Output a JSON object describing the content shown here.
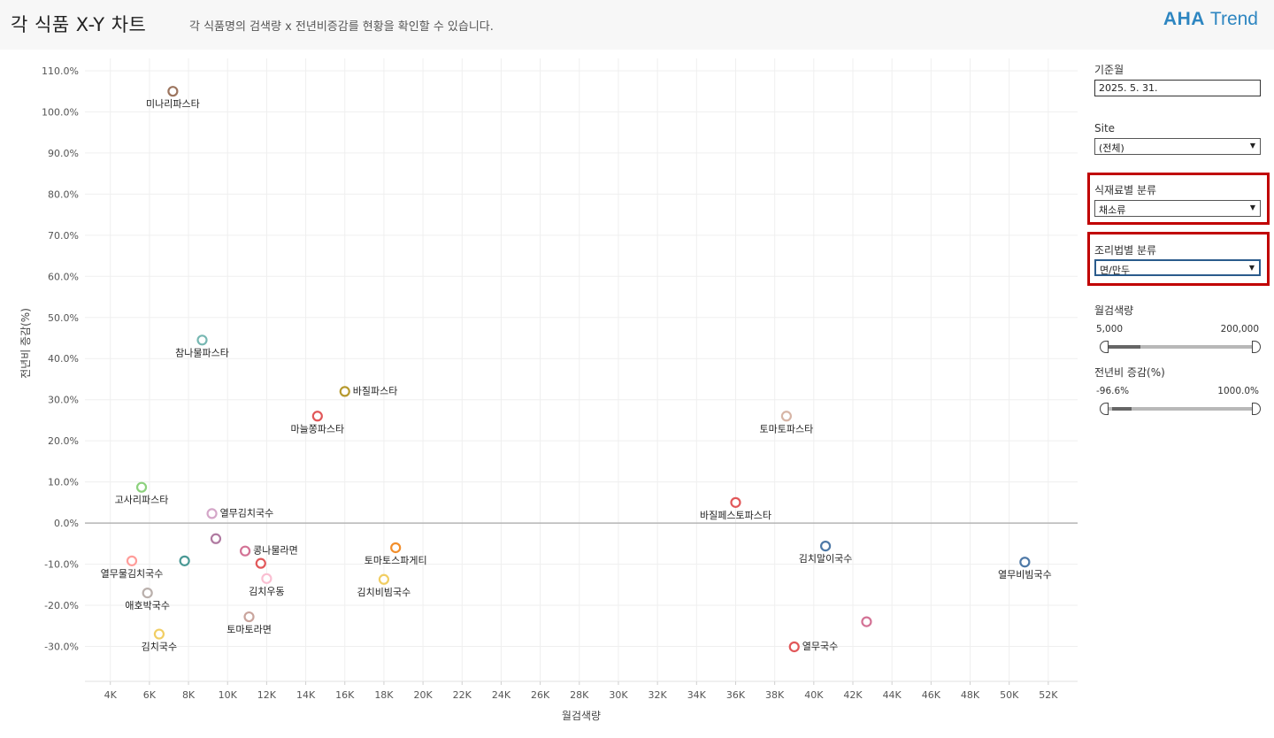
{
  "header": {
    "title": "각 식품 X-Y 차트",
    "subtitle": "각 식품명의 검색량 x 전년비증감를 현황을 확인할 수 있습니다.",
    "brand": {
      "strong": "AHA",
      "light": "Trend",
      "color": "#2e86c1"
    }
  },
  "filters": {
    "date": {
      "label": "기준월",
      "value": "2025. 5. 31."
    },
    "site": {
      "label": "Site",
      "value": "(전체)"
    },
    "ingredient": {
      "label": "식재료별 분류",
      "value": "채소류"
    },
    "cooking": {
      "label": "조리법별 분류",
      "value": "면/만두"
    },
    "search_volume": {
      "label": "월검색량",
      "min": "5,000",
      "max": "200,000"
    },
    "yoy": {
      "label": "전년비 증감(%)",
      "min": "-96.6%",
      "max": "1000.0%"
    },
    "highlight_color": "#c00000"
  },
  "chart_data": {
    "type": "scatter",
    "xlabel": "월검색량",
    "ylabel": "전년비 증감(%)",
    "xlim": [
      2700,
      53500
    ],
    "ylim": [
      -38.5,
      113
    ],
    "x_ticks": [
      "4K",
      "6K",
      "8K",
      "10K",
      "12K",
      "14K",
      "16K",
      "18K",
      "20K",
      "22K",
      "24K",
      "26K",
      "28K",
      "30K",
      "32K",
      "34K",
      "36K",
      "38K",
      "40K",
      "42K",
      "44K",
      "46K",
      "48K",
      "50K",
      "52K"
    ],
    "y_ticks": [
      "110.0%",
      "100.0%",
      "90.0%",
      "80.0%",
      "70.0%",
      "60.0%",
      "50.0%",
      "40.0%",
      "30.0%",
      "20.0%",
      "10.0%",
      "0.0%",
      "-10.0%",
      "-20.0%",
      "-30.0%"
    ],
    "grid": true,
    "points": [
      {
        "label": "미나리파스타",
        "x": 7200,
        "y": 105,
        "color": "#9c755f"
      },
      {
        "label": "참나물파스타",
        "x": 8700,
        "y": 44.5,
        "color": "#76b7b2"
      },
      {
        "label": "바질파스타",
        "x": 16000,
        "y": 32,
        "color": "#b6992d"
      },
      {
        "label": "마늘쫑파스타",
        "x": 14600,
        "y": 26,
        "color": "#e15759"
      },
      {
        "label": "토마토파스타",
        "x": 38600,
        "y": 26,
        "color": "#d7b5a6"
      },
      {
        "label": "고사리파스타",
        "x": 5600,
        "y": 8.7,
        "color": "#8cd17d"
      },
      {
        "label": "바질페스토파스타",
        "x": 36000,
        "y": 5,
        "color": "#e15759"
      },
      {
        "label": "열무김치국수",
        "x": 9200,
        "y": 2.3,
        "color": "#d4a6c8"
      },
      {
        "label": "",
        "x": 9400,
        "y": -3.8,
        "color": "#b07aa1"
      },
      {
        "label": "콩나물라면",
        "x": 10900,
        "y": -6.8,
        "color": "#d37295"
      },
      {
        "label": "",
        "x": 11700,
        "y": -9.8,
        "color": "#e15759"
      },
      {
        "label": "",
        "x": 7800,
        "y": -9.2,
        "color": "#499894"
      },
      {
        "label": "열무물김치국수",
        "x": 5100,
        "y": -9.2,
        "color": "#ff9d9a"
      },
      {
        "label": "애호박국수",
        "x": 5900,
        "y": -17,
        "color": "#bab0ac"
      },
      {
        "label": "김치우동",
        "x": 12000,
        "y": -13.5,
        "color": "#fabfd2"
      },
      {
        "label": "토마토스파게티",
        "x": 18600,
        "y": -6,
        "color": "#f28e2b"
      },
      {
        "label": "김치비빔국수",
        "x": 18000,
        "y": -13.7,
        "color": "#f1ce63"
      },
      {
        "label": "토마토라면",
        "x": 11100,
        "y": -22.8,
        "color": "#c9a49c"
      },
      {
        "label": "김치국수",
        "x": 6500,
        "y": -27,
        "color": "#f1ce63"
      },
      {
        "label": "김치말이국수",
        "x": 40600,
        "y": -5.6,
        "color": "#4e79a7"
      },
      {
        "label": "열무국수",
        "x": 39000,
        "y": -30.1,
        "color": "#e15759"
      },
      {
        "label": "",
        "x": 42700,
        "y": -24,
        "color": "#d37295"
      },
      {
        "label": "열무비빔국수",
        "x": 50800,
        "y": -9.5,
        "color": "#4e79a7"
      }
    ]
  }
}
